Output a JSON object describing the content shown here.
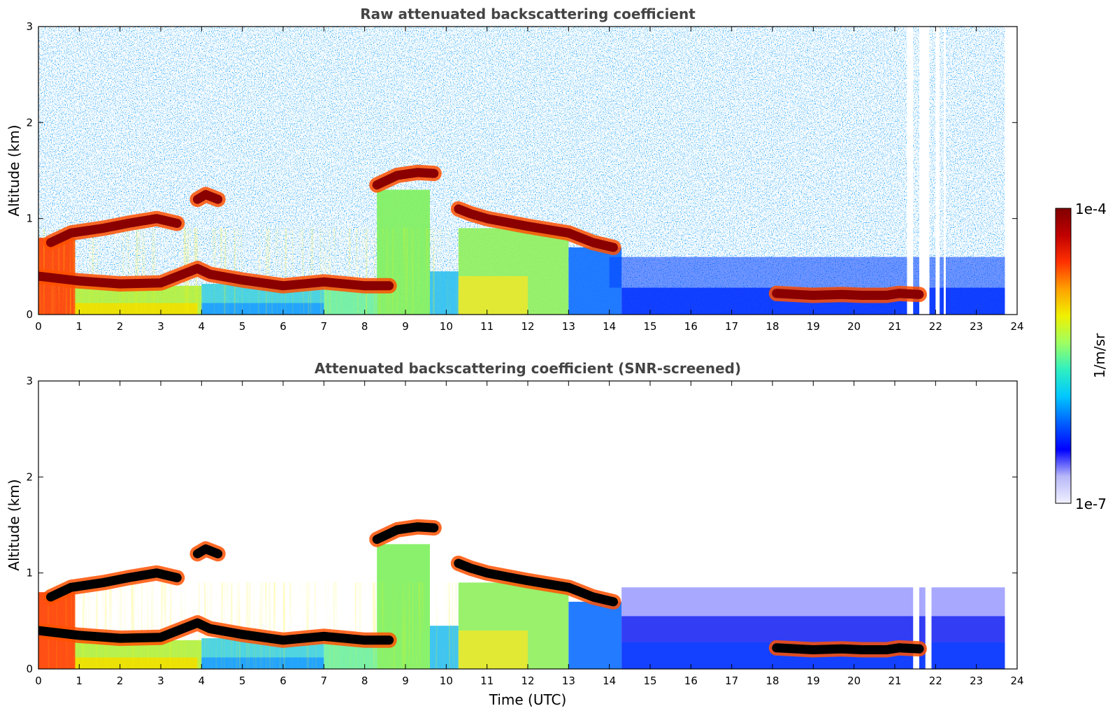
{
  "chart_data": [
    {
      "type": "heatmap",
      "title": "Raw attenuated backscattering coefficient",
      "xlabel": "",
      "ylabel": "Altitude (km)",
      "xlim": [
        0,
        24
      ],
      "ylim": [
        0,
        3
      ],
      "xticks": [
        "0",
        "1",
        "2",
        "3",
        "4",
        "5",
        "6",
        "7",
        "8",
        "9",
        "10",
        "11",
        "12",
        "13",
        "14",
        "15",
        "16",
        "17",
        "18",
        "19",
        "20",
        "21",
        "22",
        "23",
        "24"
      ],
      "yticks": [
        "0",
        "1",
        "2",
        "3"
      ],
      "cloud_layers": [
        {
          "name": "boundary-layer-top",
          "x": [
            0,
            1,
            2,
            3,
            3.9,
            4.2,
            5,
            6,
            7,
            8,
            8.6
          ],
          "y": [
            0.4,
            0.35,
            0.32,
            0.33,
            0.48,
            0.42,
            0.36,
            0.3,
            0.34,
            0.3,
            0.3
          ]
        },
        {
          "name": "stratocumulus-cells",
          "x": [
            0.3,
            0.8,
            1.6,
            2.2,
            2.9,
            3.4
          ],
          "y": [
            0.75,
            0.85,
            0.9,
            0.95,
            1.0,
            0.95
          ]
        },
        {
          "name": "elevated-layer-4h",
          "x": [
            3.9,
            4.1,
            4.4
          ],
          "y": [
            1.2,
            1.25,
            1.2
          ]
        },
        {
          "name": "elevated-layer-9h",
          "x": [
            8.3,
            8.8,
            9.3,
            9.7
          ],
          "y": [
            1.35,
            1.45,
            1.48,
            1.47
          ]
        },
        {
          "name": "elevated-layer-11-14h",
          "x": [
            10.3,
            10.6,
            11,
            12,
            13,
            13.6,
            14.1
          ],
          "y": [
            1.1,
            1.05,
            1.0,
            0.92,
            0.85,
            0.75,
            0.7
          ]
        },
        {
          "name": "nocturnal-layer",
          "x": [
            18.1,
            19,
            19.7,
            20.2,
            20.8,
            21.1,
            21.6
          ],
          "y": [
            0.22,
            0.2,
            0.21,
            0.2,
            0.2,
            0.22,
            0.21
          ]
        }
      ]
    },
    {
      "type": "heatmap",
      "title": "Attenuated backscattering coefficient (SNR-screened)",
      "xlabel": "Time (UTC)",
      "ylabel": "Altitude (km)",
      "xlim": [
        0,
        24
      ],
      "ylim": [
        0,
        3
      ],
      "xticks": [
        "0",
        "1",
        "2",
        "3",
        "4",
        "5",
        "6",
        "7",
        "8",
        "9",
        "10",
        "11",
        "12",
        "13",
        "14",
        "15",
        "16",
        "17",
        "18",
        "19",
        "20",
        "21",
        "22",
        "23",
        "24"
      ],
      "yticks": [
        "0",
        "1",
        "2",
        "3"
      ],
      "cloud_layers": [
        {
          "name": "boundary-layer-top",
          "x": [
            0,
            1,
            2,
            3,
            3.9,
            4.2,
            5,
            6,
            7,
            8,
            8.6
          ],
          "y": [
            0.4,
            0.35,
            0.32,
            0.33,
            0.48,
            0.42,
            0.36,
            0.3,
            0.34,
            0.3,
            0.3
          ]
        },
        {
          "name": "stratocumulus-cells",
          "x": [
            0.3,
            0.8,
            1.6,
            2.2,
            2.9,
            3.4
          ],
          "y": [
            0.75,
            0.85,
            0.9,
            0.95,
            1.0,
            0.95
          ]
        },
        {
          "name": "elevated-layer-4h",
          "x": [
            3.9,
            4.1,
            4.4
          ],
          "y": [
            1.2,
            1.25,
            1.2
          ]
        },
        {
          "name": "elevated-layer-9h",
          "x": [
            8.3,
            8.8,
            9.3,
            9.7
          ],
          "y": [
            1.35,
            1.45,
            1.48,
            1.47
          ]
        },
        {
          "name": "elevated-layer-11-14h",
          "x": [
            10.3,
            10.6,
            11,
            12,
            13,
            13.6,
            14.1
          ],
          "y": [
            1.1,
            1.05,
            1.0,
            0.92,
            0.85,
            0.75,
            0.7
          ]
        },
        {
          "name": "nocturnal-layer",
          "x": [
            18.1,
            19,
            19.7,
            20.2,
            20.8,
            21.1,
            21.6
          ],
          "y": [
            0.22,
            0.2,
            0.21,
            0.2,
            0.2,
            0.22,
            0.21
          ]
        }
      ]
    }
  ],
  "colorbar": {
    "label": "1/m/sr",
    "max_label": "1e-4",
    "min_label": "1e-7",
    "scale": "log",
    "colormap": [
      "#f0f0ff",
      "#b8b8f8",
      "#0000ff",
      "#0060ff",
      "#00c8ff",
      "#30f0c0",
      "#a0ff60",
      "#f0f000",
      "#ffa000",
      "#ff3000",
      "#c00000",
      "#800000"
    ]
  }
}
